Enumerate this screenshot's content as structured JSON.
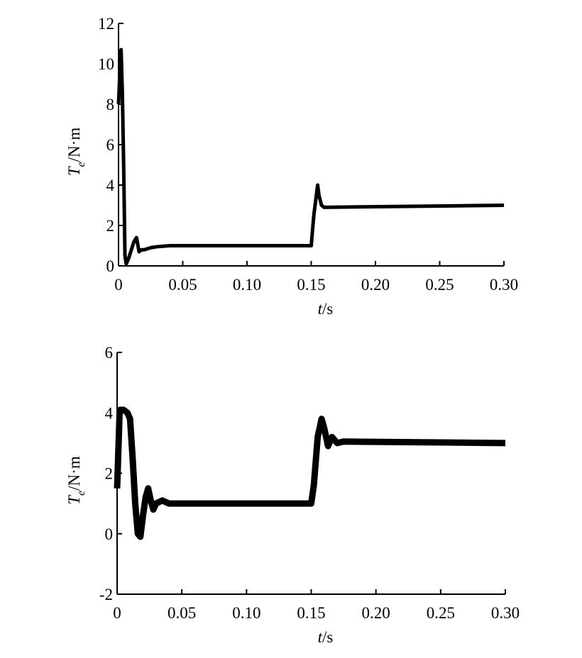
{
  "chart_data": [
    {
      "type": "line",
      "x": [
        0,
        0.001,
        0.002,
        0.003,
        0.004,
        0.005,
        0.006,
        0.008,
        0.01,
        0.012,
        0.014,
        0.016,
        0.018,
        0.02,
        0.025,
        0.03,
        0.04,
        0.15,
        0.152,
        0.154,
        0.155,
        0.156,
        0.158,
        0.16,
        0.3
      ],
      "values": [
        8,
        9.5,
        10.7,
        8.5,
        5,
        0.5,
        0.1,
        0.4,
        0.8,
        1.2,
        1.4,
        0.7,
        0.8,
        0.8,
        0.9,
        0.95,
        1,
        1,
        2.5,
        3.5,
        4,
        3.5,
        3,
        2.9,
        3
      ],
      "color": "#000000",
      "xlim": [
        0,
        0.3
      ],
      "ylim": [
        0,
        12
      ],
      "xticks": [
        0,
        0.05,
        {
          "value": 0.1,
          "label": "0.10"
        },
        0.15,
        {
          "value": 0.2,
          "label": "0.20"
        },
        0.25,
        {
          "value": 0.3,
          "label": "0.30"
        }
      ],
      "yticks": [
        0,
        2,
        4,
        6,
        8,
        10,
        12
      ],
      "xlabel": {
        "symbol": "t",
        "unit": "/s"
      },
      "ylabel": {
        "symbol": "T",
        "subscript": "e",
        "unit": "/N·m"
      }
    },
    {
      "type": "line",
      "x": [
        0,
        0.002,
        0.005,
        0.008,
        0.01,
        0.012,
        0.014,
        0.016,
        0.018,
        0.02,
        0.022,
        0.024,
        0.026,
        0.028,
        0.03,
        0.035,
        0.04,
        0.15,
        0.152,
        0.155,
        0.158,
        0.16,
        0.163,
        0.166,
        0.17,
        0.175,
        0.3
      ],
      "values": [
        1.5,
        4.1,
        4.1,
        4,
        3.8,
        2.5,
        1,
        0,
        -0.1,
        0.6,
        1.2,
        1.5,
        1.1,
        0.8,
        1,
        1.1,
        1,
        1,
        1.6,
        3.2,
        3.8,
        3.5,
        2.9,
        3.2,
        3,
        3.05,
        3
      ],
      "color": "#000000",
      "xlim": [
        0,
        0.3
      ],
      "ylim": [
        -2,
        6
      ],
      "xticks": [
        0,
        0.05,
        {
          "value": 0.1,
          "label": "0.10"
        },
        0.15,
        {
          "value": 0.2,
          "label": "0.20"
        },
        0.25,
        {
          "value": 0.3,
          "label": "0.30"
        }
      ],
      "yticks": [
        -2,
        0,
        2,
        4,
        6
      ],
      "xlabel": {
        "symbol": "t",
        "unit": "/s"
      },
      "ylabel": {
        "symbol": "T",
        "subscript": "e",
        "unit": "/N·m"
      }
    }
  ]
}
